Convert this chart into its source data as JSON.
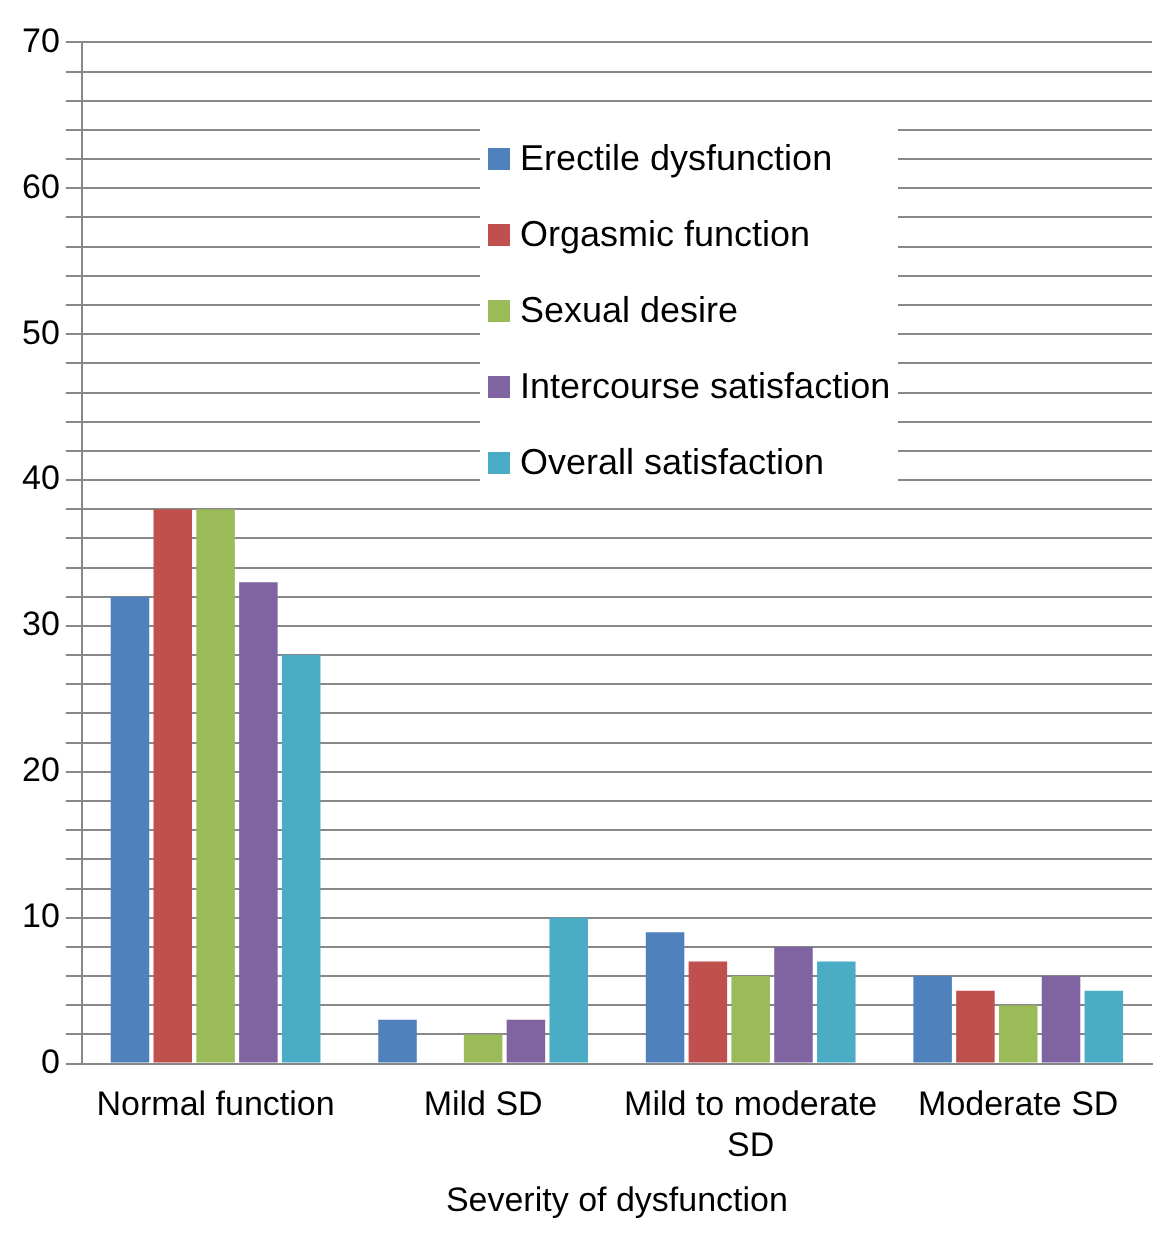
{
  "chart_data": {
    "type": "bar",
    "xlabel": "Severity of dysfunction",
    "categories": [
      "Normal function",
      "Mild SD",
      "Mild to moderate SD",
      "Moderate SD"
    ],
    "series": [
      {
        "name": "Erectile dysfunction",
        "color": "#4f81bd",
        "values": [
          32,
          3,
          9,
          6
        ]
      },
      {
        "name": "Orgasmic function",
        "color": "#c0504d",
        "values": [
          38,
          0,
          7,
          5
        ]
      },
      {
        "name": "Sexual desire",
        "color": "#9bbb59",
        "values": [
          38,
          2,
          6,
          4
        ]
      },
      {
        "name": "Intercourse satisfaction",
        "color": "#8064a2",
        "values": [
          33,
          3,
          8,
          6
        ]
      },
      {
        "name": "Overall satisfaction",
        "color": "#4bacc6",
        "values": [
          28,
          10,
          7,
          5
        ]
      }
    ],
    "ylim": [
      0,
      70
    ],
    "yticks": [
      0,
      {
        "value": 2,
        "label": null
      },
      {
        "value": 4,
        "label": null
      },
      {
        "value": 6,
        "label": null
      },
      {
        "value": 8,
        "label": null
      },
      10,
      {
        "value": 12,
        "label": null
      },
      {
        "value": 14,
        "label": null
      },
      {
        "value": 16,
        "label": null
      },
      {
        "value": 18,
        "label": null
      },
      20,
      {
        "value": 22,
        "label": null
      },
      {
        "value": 24,
        "label": null
      },
      {
        "value": 26,
        "label": null
      },
      {
        "value": 28,
        "label": null
      },
      30,
      {
        "value": 32,
        "label": null
      },
      {
        "value": 34,
        "label": null
      },
      {
        "value": 36,
        "label": null
      },
      {
        "value": 38,
        "label": null
      },
      40,
      {
        "value": 42,
        "label": null
      },
      {
        "value": 44,
        "label": null
      },
      {
        "value": 46,
        "label": null
      },
      {
        "value": 48,
        "label": null
      },
      50,
      {
        "value": 52,
        "label": null
      },
      {
        "value": 54,
        "label": null
      },
      {
        "value": 56,
        "label": null
      },
      {
        "value": 58,
        "label": null
      },
      60,
      {
        "value": 62,
        "label": null
      },
      {
        "value": 64,
        "label": null
      },
      {
        "value": 66,
        "label": null
      },
      {
        "value": 68,
        "label": null
      },
      70
    ],
    "grid": "y",
    "legend": "top right"
  }
}
